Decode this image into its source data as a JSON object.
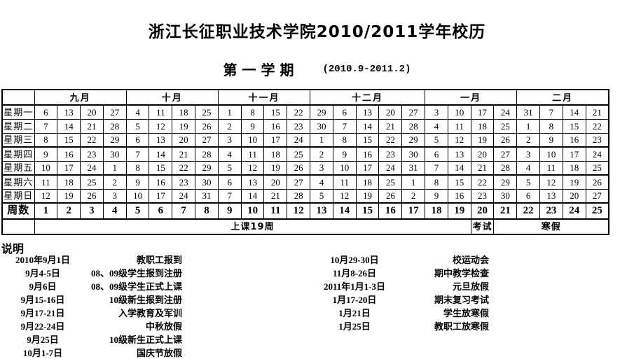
{
  "title": "浙江长征职业技术学院2010/2011学年校历",
  "semester": "第一学期",
  "period": "(2010.9-2011.2)",
  "colors": {
    "holiday_green": "#1f7d1f",
    "weekend_gray": "#c0c0c0",
    "border": "#000000"
  },
  "calendar": {
    "corner_label": "",
    "months": [
      {
        "label": "九月",
        "span": 4
      },
      {
        "label": "十月",
        "span": 4
      },
      {
        "label": "十一月",
        "span": 4
      },
      {
        "label": "十二月",
        "span": 5
      },
      {
        "label": "一月",
        "span": 4
      },
      {
        "label": "二月",
        "span": 4
      }
    ],
    "day_rows": [
      {
        "label": "星期一",
        "cells": [
          "6",
          "13",
          "20",
          "27",
          "4h",
          "11",
          "18",
          "25",
          "1",
          "8",
          "15",
          "22",
          "29",
          "6",
          "13",
          "20",
          "27",
          "3h",
          "10",
          "17",
          "24g",
          "31g",
          "7g",
          "14g",
          "21g"
        ]
      },
      {
        "label": "星期二",
        "cells": [
          "7",
          "14",
          "21",
          "28",
          "5h",
          "12",
          "19",
          "26",
          "2",
          "9",
          "16",
          "23",
          "30",
          "7",
          "14",
          "21",
          "28",
          "4",
          "11",
          "18",
          "25g",
          "1g",
          "8g",
          "15g",
          "22g"
        ]
      },
      {
        "label": "星期三",
        "cells": [
          "8",
          "15",
          "22h",
          "29",
          "6h",
          "13",
          "20",
          "27",
          "3",
          "10",
          "17",
          "24",
          "1",
          "8",
          "15",
          "22",
          "29",
          "5",
          "12",
          "19",
          "26g",
          "2g",
          "9g",
          "16g",
          "23g"
        ]
      },
      {
        "label": "星期四",
        "cells": [
          "9",
          "16",
          "23h",
          "30",
          "7h",
          "14",
          "21",
          "28",
          "4",
          "11",
          "18",
          "25",
          "2",
          "9",
          "16",
          "23",
          "30",
          "6",
          "13",
          "20",
          "27g",
          "3g",
          "10g",
          "17g",
          "24g"
        ]
      },
      {
        "label": "星期五",
        "cells": [
          "10",
          "17",
          "24h",
          "1h",
          "8",
          "15",
          "22",
          "29",
          "5",
          "12",
          "19",
          "26",
          "3",
          "10",
          "17",
          "24",
          "31",
          "7",
          "14",
          "21g",
          "28g",
          "4g",
          "11g",
          "18g",
          "25g"
        ]
      },
      {
        "label": "星期六",
        "cells": [
          "11g",
          "18g",
          "25",
          "2h",
          "9",
          "16g",
          "23g",
          "30g",
          "6g",
          "13g",
          "20g",
          "27g",
          "4g",
          "11g",
          "18g",
          "25g",
          "1h",
          "8g",
          "15g",
          "22g",
          "29g",
          "5g",
          "12g",
          "19g",
          "26g"
        ]
      },
      {
        "label": "星期日",
        "cells": [
          "12g",
          "19g",
          "26",
          "3h",
          "10g",
          "17g",
          "24g",
          "31g",
          "7g",
          "14g",
          "21g",
          "28g",
          "5g",
          "12g",
          "19g",
          "26g",
          "2h",
          "9g",
          "16g",
          "23g",
          "30g",
          "6g",
          "13g",
          "20g",
          "27g"
        ]
      }
    ],
    "week_row": {
      "label": "周数",
      "numbers": [
        "1",
        "2",
        "3",
        "4",
        "5",
        "6",
        "7",
        "8",
        "9",
        "10",
        "11",
        "12",
        "13",
        "14",
        "15",
        "16",
        "17",
        "18",
        "19",
        "20",
        "21",
        "22",
        "23",
        "24",
        "25"
      ]
    },
    "summary_row": {
      "corner_label": "",
      "segments": [
        {
          "label": "上课19周",
          "span": 19
        },
        {
          "label": "考试",
          "span": 1
        },
        {
          "label": "寒假",
          "span": 5
        }
      ]
    }
  },
  "notes": {
    "heading": "说明",
    "left": [
      {
        "date": "2010年9月1日",
        "event": "教职工报到"
      },
      {
        "date": "9月4-5日",
        "event": "08、09级学生报到注册"
      },
      {
        "date": "9月6日",
        "event": "08、09级学生正式上课"
      },
      {
        "date": "9月15-16日",
        "event": "10级新生报到注册"
      },
      {
        "date": "9月17-21日",
        "event": "入学教育及军训"
      },
      {
        "date": "9月22-24日",
        "event": "中秋放假"
      },
      {
        "date": "9月25日",
        "event": "10级新生正式上课"
      },
      {
        "date": "10月1-7日",
        "event": "国庆节放假"
      }
    ],
    "right": [
      {
        "date": "10月29-30日",
        "event": "校运动会"
      },
      {
        "date": "11月8-26日",
        "event": "期中教学检查"
      },
      {
        "date": "2011年1月1-3日",
        "event": "元旦放假"
      },
      {
        "date": "1月17-20日",
        "event": "期末复习考试"
      },
      {
        "date": "1月21日",
        "event": "学生放寒假"
      },
      {
        "date": "1月25日",
        "event": "教职工放寒假"
      }
    ]
  }
}
